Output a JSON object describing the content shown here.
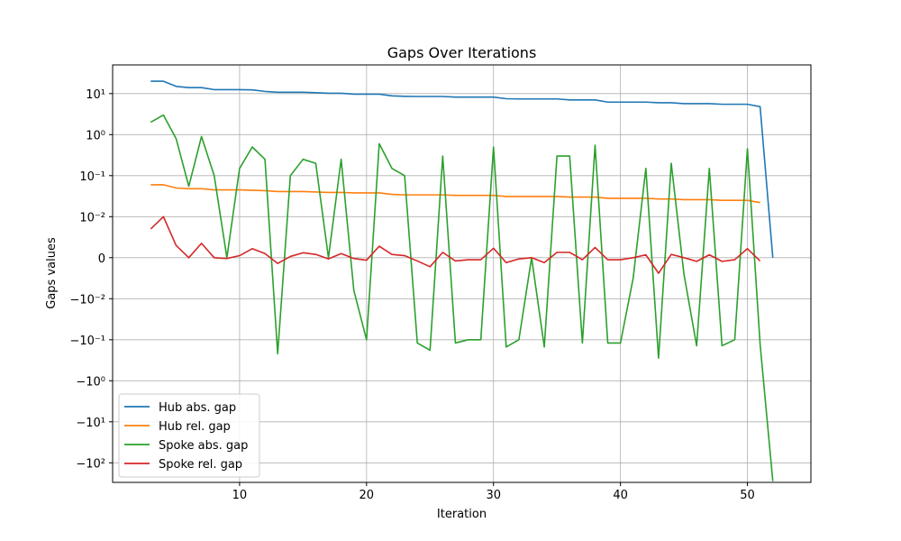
{
  "chart_data": {
    "type": "line",
    "title": "Gaps Over Iterations",
    "xlabel": "Iteration",
    "ylabel": "Gaps values",
    "xlim": [
      0,
      55
    ],
    "x_ticks": [
      10,
      20,
      30,
      40,
      50
    ],
    "y_scale": "symlog",
    "y_linthresh": 0.01,
    "ylim": [
      -300,
      50
    ],
    "y_ticks": [
      {
        "value": 10,
        "label": "10¹"
      },
      {
        "value": 1,
        "label": "10⁰"
      },
      {
        "value": 0.1,
        "label": "10⁻¹"
      },
      {
        "value": 0.01,
        "label": "10⁻²"
      },
      {
        "value": 0,
        "label": "0"
      },
      {
        "value": -0.01,
        "label": "−10⁻²"
      },
      {
        "value": -0.1,
        "label": "−10⁻¹"
      },
      {
        "value": -1,
        "label": "−10⁰"
      },
      {
        "value": -10,
        "label": "−10¹"
      },
      {
        "value": -100,
        "label": "−10²"
      }
    ],
    "grid": true,
    "legend_position": "lower-left",
    "series": [
      {
        "name": "Hub abs. gap",
        "color": "#1f77b4",
        "x": [
          3,
          4,
          5,
          6,
          7,
          8,
          9,
          10,
          11,
          12,
          13,
          14,
          15,
          16,
          17,
          18,
          19,
          20,
          21,
          22,
          23,
          24,
          25,
          26,
          27,
          28,
          29,
          30,
          31,
          32,
          33,
          34,
          35,
          36,
          37,
          38,
          39,
          40,
          41,
          42,
          43,
          44,
          45,
          46,
          47,
          48,
          49,
          50,
          51,
          52
        ],
        "y": [
          20,
          20,
          15,
          14,
          14,
          12.5,
          12.5,
          12.5,
          12.3,
          11.3,
          10.8,
          10.8,
          10.8,
          10.5,
          10.2,
          10.2,
          9.7,
          9.7,
          9.7,
          8.8,
          8.6,
          8.5,
          8.5,
          8.5,
          8.2,
          8.2,
          8.2,
          8.2,
          7.5,
          7.4,
          7.4,
          7.4,
          7.4,
          7.0,
          7.0,
          7.0,
          6.2,
          6.2,
          6.2,
          6.2,
          6.0,
          6.0,
          5.7,
          5.7,
          5.7,
          5.5,
          5.5,
          5.5,
          4.8,
          0
        ]
      },
      {
        "name": "Hub rel. gap",
        "color": "#ff7f0e",
        "x": [
          3,
          4,
          5,
          6,
          7,
          8,
          9,
          10,
          11,
          12,
          13,
          14,
          15,
          16,
          17,
          18,
          19,
          20,
          21,
          22,
          23,
          24,
          25,
          26,
          27,
          28,
          29,
          30,
          31,
          32,
          33,
          34,
          35,
          36,
          37,
          38,
          39,
          40,
          41,
          42,
          43,
          44,
          45,
          46,
          47,
          48,
          49,
          50,
          51
        ],
        "y": [
          0.06,
          0.06,
          0.05,
          0.048,
          0.048,
          0.045,
          0.045,
          0.045,
          0.044,
          0.043,
          0.041,
          0.041,
          0.041,
          0.04,
          0.039,
          0.039,
          0.038,
          0.038,
          0.038,
          0.035,
          0.034,
          0.034,
          0.034,
          0.034,
          0.033,
          0.033,
          0.033,
          0.033,
          0.031,
          0.031,
          0.031,
          0.031,
          0.031,
          0.03,
          0.03,
          0.03,
          0.028,
          0.028,
          0.028,
          0.028,
          0.027,
          0.027,
          0.026,
          0.026,
          0.026,
          0.025,
          0.025,
          0.025,
          0.022
        ]
      },
      {
        "name": "Spoke abs. gap",
        "color": "#2ca02c",
        "x": [
          3,
          4,
          5,
          6,
          7,
          8,
          9,
          10,
          11,
          12,
          13,
          14,
          15,
          16,
          17,
          18,
          19,
          20,
          21,
          22,
          23,
          24,
          25,
          26,
          27,
          28,
          29,
          30,
          31,
          32,
          33,
          34,
          35,
          36,
          37,
          38,
          39,
          40,
          41,
          42,
          43,
          44,
          45,
          46,
          47,
          48,
          49,
          50,
          51,
          52
        ],
        "y": [
          2,
          3,
          0.8,
          0.055,
          0.9,
          0.1,
          0,
          0.15,
          0.5,
          0.25,
          -0.22,
          0.1,
          0.25,
          0.2,
          0,
          0.25,
          -0.008,
          -0.1,
          0.6,
          0.15,
          0.1,
          -0.12,
          -0.18,
          0.3,
          -0.12,
          -0.1,
          -0.1,
          0.5,
          -0.15,
          -0.1,
          0,
          -0.15,
          0.3,
          0.3,
          -0.12,
          0.55,
          -0.12,
          -0.12,
          -0.005,
          0.15,
          -0.28,
          0.2,
          -0.004,
          -0.14,
          0.15,
          -0.14,
          -0.1,
          0.45,
          -0.13,
          -280
        ]
      },
      {
        "name": "Spoke rel. gap",
        "color": "#d62728",
        "x": [
          3,
          4,
          5,
          6,
          7,
          8,
          9,
          10,
          11,
          12,
          13,
          14,
          15,
          16,
          17,
          18,
          19,
          20,
          21,
          22,
          23,
          24,
          25,
          26,
          27,
          28,
          29,
          30,
          31,
          32,
          33,
          34,
          35,
          36,
          37,
          38,
          39,
          40,
          41,
          42,
          43,
          44,
          45,
          46,
          47,
          48,
          49,
          50,
          51
        ],
        "y": [
          0.007,
          0.01,
          0.003,
          0,
          0.0035,
          0,
          -0.0002,
          0.0005,
          0.0022,
          0.001,
          -0.0014,
          0.0003,
          0.0012,
          0.0008,
          -0.0003,
          0.001,
          -0.0002,
          -0.0006,
          0.0028,
          0.0008,
          0.0005,
          -0.0008,
          -0.0022,
          0.0013,
          -0.0008,
          -0.0005,
          -0.0005,
          0.0023,
          -0.0012,
          -0.0003,
          0,
          -0.0012,
          0.0013,
          0.0013,
          -0.0005,
          0.0025,
          -0.0005,
          -0.0005,
          0,
          0.0007,
          -0.0038,
          0.0008,
          0,
          -0.0009,
          0.0007,
          -0.0009,
          -0.0005,
          0.0022,
          -0.0008
        ]
      }
    ]
  }
}
